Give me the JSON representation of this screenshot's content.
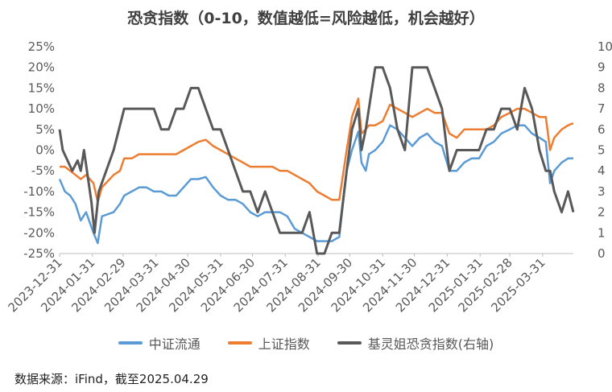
{
  "chart_data": {
    "type": "line",
    "title": "恐贪指数（0-10，数值越低=风险越低，机会越好）",
    "left_axis": {
      "ticks": [
        "25%",
        "20%",
        "15%",
        "10%",
        "5%",
        "0%",
        "-5%",
        "-10%",
        "-15%",
        "-20%",
        "-25%"
      ],
      "ylim": [
        -25,
        25
      ]
    },
    "right_axis": {
      "ticks": [
        "10",
        "9",
        "8",
        "7",
        "6",
        "5",
        "4",
        "3",
        "2",
        "1",
        "0"
      ],
      "ylim": [
        0,
        10
      ]
    },
    "x_axis": {
      "xlim": [
        "2023-12-31",
        "2025-04-29"
      ],
      "tick_labels": [
        "2023-12-31",
        "2024-01-31",
        "2024-02-29",
        "2024-03-31",
        "2024-04-30",
        "2024-05-31",
        "2024-06-30",
        "2024-07-31",
        "2024-08-31",
        "2024-09-30",
        "2024-10-31",
        "2024-11-30",
        "2024-12-31",
        "2025-01-31",
        "2025-02-28",
        "2025-03-31"
      ]
    },
    "grid": false,
    "legend_position": "bottom",
    "series": [
      {
        "name": "中证流通",
        "axis": "left",
        "color": "#5B9BD5",
        "points": [
          [
            "2023-12-31",
            -7
          ],
          [
            "2024-01-05",
            -10
          ],
          [
            "2024-01-10",
            -11
          ],
          [
            "2024-01-15",
            -13
          ],
          [
            "2024-01-20",
            -17
          ],
          [
            "2024-01-25",
            -15
          ],
          [
            "2024-02-01",
            -20
          ],
          [
            "2024-02-05",
            -22.5
          ],
          [
            "2024-02-09",
            -16
          ],
          [
            "2024-02-20",
            -15
          ],
          [
            "2024-02-26",
            -13
          ],
          [
            "2024-03-01",
            -11
          ],
          [
            "2024-03-08",
            -10
          ],
          [
            "2024-03-15",
            -9
          ],
          [
            "2024-03-22",
            -9
          ],
          [
            "2024-03-29",
            -10
          ],
          [
            "2024-04-05",
            -10
          ],
          [
            "2024-04-12",
            -11
          ],
          [
            "2024-04-19",
            -11
          ],
          [
            "2024-04-26",
            -9
          ],
          [
            "2024-05-03",
            -7
          ],
          [
            "2024-05-10",
            -7
          ],
          [
            "2024-05-17",
            -6.5
          ],
          [
            "2024-05-24",
            -9
          ],
          [
            "2024-05-31",
            -11
          ],
          [
            "2024-06-07",
            -12
          ],
          [
            "2024-06-14",
            -12
          ],
          [
            "2024-06-21",
            -13
          ],
          [
            "2024-06-28",
            -15
          ],
          [
            "2024-07-05",
            -16
          ],
          [
            "2024-07-12",
            -15
          ],
          [
            "2024-07-19",
            -15
          ],
          [
            "2024-07-26",
            -15
          ],
          [
            "2024-08-02",
            -16
          ],
          [
            "2024-08-09",
            -19
          ],
          [
            "2024-08-16",
            -20
          ],
          [
            "2024-08-23",
            -21
          ],
          [
            "2024-08-30",
            -22
          ],
          [
            "2024-09-06",
            -22
          ],
          [
            "2024-09-13",
            -22
          ],
          [
            "2024-09-20",
            -21
          ],
          [
            "2024-09-27",
            -5
          ],
          [
            "2024-10-02",
            0
          ],
          [
            "2024-10-08",
            4.5
          ],
          [
            "2024-10-11",
            -3
          ],
          [
            "2024-10-15",
            -5
          ],
          [
            "2024-10-18",
            -1
          ],
          [
            "2024-10-24",
            0
          ],
          [
            "2024-10-31",
            2
          ],
          [
            "2024-11-07",
            6
          ],
          [
            "2024-11-14",
            5
          ],
          [
            "2024-11-21",
            3
          ],
          [
            "2024-11-28",
            1
          ],
          [
            "2024-12-05",
            3
          ],
          [
            "2024-12-12",
            4
          ],
          [
            "2024-12-19",
            2
          ],
          [
            "2024-12-26",
            1
          ],
          [
            "2025-01-02",
            -5
          ],
          [
            "2025-01-09",
            -5
          ],
          [
            "2025-01-16",
            -3
          ],
          [
            "2025-01-23",
            -2
          ],
          [
            "2025-01-30",
            -2
          ],
          [
            "2025-02-06",
            1
          ],
          [
            "2025-02-13",
            2
          ],
          [
            "2025-02-20",
            4
          ],
          [
            "2025-02-28",
            5
          ],
          [
            "2025-03-07",
            6
          ],
          [
            "2025-03-14",
            6
          ],
          [
            "2025-03-21",
            4
          ],
          [
            "2025-03-28",
            3
          ],
          [
            "2025-04-03",
            2
          ],
          [
            "2025-04-07",
            -8
          ],
          [
            "2025-04-11",
            -5
          ],
          [
            "2025-04-18",
            -3
          ],
          [
            "2025-04-24",
            -2
          ],
          [
            "2025-04-29",
            -2
          ]
        ]
      },
      {
        "name": "上证指数",
        "axis": "left",
        "color": "#ED7D31",
        "points": [
          [
            "2023-12-31",
            -4
          ],
          [
            "2024-01-05",
            -4
          ],
          [
            "2024-01-10",
            -5
          ],
          [
            "2024-01-15",
            -6
          ],
          [
            "2024-01-20",
            -7
          ],
          [
            "2024-01-25",
            -6
          ],
          [
            "2024-02-01",
            -8
          ],
          [
            "2024-02-05",
            -12.5
          ],
          [
            "2024-02-09",
            -9
          ],
          [
            "2024-02-20",
            -6
          ],
          [
            "2024-02-26",
            -5
          ],
          [
            "2024-03-01",
            -2
          ],
          [
            "2024-03-08",
            -2
          ],
          [
            "2024-03-15",
            -1
          ],
          [
            "2024-03-22",
            -1
          ],
          [
            "2024-03-29",
            -1
          ],
          [
            "2024-04-05",
            -1
          ],
          [
            "2024-04-12",
            -1
          ],
          [
            "2024-04-19",
            -1
          ],
          [
            "2024-04-26",
            0
          ],
          [
            "2024-05-03",
            1
          ],
          [
            "2024-05-10",
            2
          ],
          [
            "2024-05-17",
            2.5
          ],
          [
            "2024-05-24",
            1
          ],
          [
            "2024-05-31",
            0
          ],
          [
            "2024-06-07",
            -1
          ],
          [
            "2024-06-14",
            -2
          ],
          [
            "2024-06-21",
            -3
          ],
          [
            "2024-06-28",
            -4
          ],
          [
            "2024-07-05",
            -4
          ],
          [
            "2024-07-12",
            -4
          ],
          [
            "2024-07-19",
            -4
          ],
          [
            "2024-07-26",
            -5
          ],
          [
            "2024-08-02",
            -5
          ],
          [
            "2024-08-09",
            -6
          ],
          [
            "2024-08-16",
            -7
          ],
          [
            "2024-08-23",
            -8
          ],
          [
            "2024-08-30",
            -10
          ],
          [
            "2024-09-06",
            -11
          ],
          [
            "2024-09-13",
            -12
          ],
          [
            "2024-09-20",
            -12
          ],
          [
            "2024-09-27",
            0
          ],
          [
            "2024-10-02",
            8
          ],
          [
            "2024-10-08",
            12.5
          ],
          [
            "2024-10-11",
            4
          ],
          [
            "2024-10-15",
            5
          ],
          [
            "2024-10-18",
            6
          ],
          [
            "2024-10-24",
            6
          ],
          [
            "2024-10-31",
            7
          ],
          [
            "2024-11-07",
            11
          ],
          [
            "2024-11-14",
            10
          ],
          [
            "2024-11-21",
            9
          ],
          [
            "2024-11-28",
            8
          ],
          [
            "2024-12-05",
            9
          ],
          [
            "2024-12-12",
            10
          ],
          [
            "2024-12-19",
            9
          ],
          [
            "2024-12-26",
            9
          ],
          [
            "2025-01-02",
            4
          ],
          [
            "2025-01-09",
            3
          ],
          [
            "2025-01-16",
            5
          ],
          [
            "2025-01-23",
            5
          ],
          [
            "2025-01-30",
            5
          ],
          [
            "2025-02-06",
            5
          ],
          [
            "2025-02-13",
            6
          ],
          [
            "2025-02-20",
            8
          ],
          [
            "2025-02-28",
            9
          ],
          [
            "2025-03-07",
            10
          ],
          [
            "2025-03-14",
            10
          ],
          [
            "2025-03-21",
            9
          ],
          [
            "2025-03-28",
            8
          ],
          [
            "2025-04-03",
            8
          ],
          [
            "2025-04-07",
            0
          ],
          [
            "2025-04-11",
            3
          ],
          [
            "2025-04-18",
            5
          ],
          [
            "2025-04-24",
            6
          ],
          [
            "2025-04-29",
            6.5
          ]
        ]
      },
      {
        "name": "基灵姐恐贪指数(右轴)",
        "axis": "right",
        "color": "#595959",
        "points": [
          [
            "2023-12-31",
            6
          ],
          [
            "2024-01-03",
            5
          ],
          [
            "2024-01-12",
            4
          ],
          [
            "2024-01-17",
            4.5
          ],
          [
            "2024-01-20",
            4
          ],
          [
            "2024-01-23",
            5
          ],
          [
            "2024-01-30",
            2.5
          ],
          [
            "2024-02-02",
            1
          ],
          [
            "2024-02-06",
            3
          ],
          [
            "2024-02-13",
            4
          ],
          [
            "2024-02-20",
            5
          ],
          [
            "2024-02-25",
            6
          ],
          [
            "2024-03-01",
            7
          ],
          [
            "2024-03-08",
            7
          ],
          [
            "2024-03-15",
            7
          ],
          [
            "2024-03-22",
            7
          ],
          [
            "2024-03-29",
            7
          ],
          [
            "2024-04-05",
            6
          ],
          [
            "2024-04-12",
            6
          ],
          [
            "2024-04-19",
            7
          ],
          [
            "2024-04-26",
            7
          ],
          [
            "2024-05-03",
            8
          ],
          [
            "2024-05-10",
            8
          ],
          [
            "2024-05-17",
            7
          ],
          [
            "2024-05-24",
            6
          ],
          [
            "2024-05-31",
            6
          ],
          [
            "2024-06-07",
            5
          ],
          [
            "2024-06-14",
            4
          ],
          [
            "2024-06-21",
            3
          ],
          [
            "2024-06-28",
            3
          ],
          [
            "2024-07-05",
            2
          ],
          [
            "2024-07-12",
            3
          ],
          [
            "2024-07-19",
            2
          ],
          [
            "2024-07-26",
            1
          ],
          [
            "2024-08-02",
            1
          ],
          [
            "2024-08-09",
            1
          ],
          [
            "2024-08-16",
            1
          ],
          [
            "2024-08-23",
            2
          ],
          [
            "2024-08-30",
            0
          ],
          [
            "2024-09-06",
            0
          ],
          [
            "2024-09-13",
            1
          ],
          [
            "2024-09-20",
            1
          ],
          [
            "2024-09-27",
            4
          ],
          [
            "2024-10-02",
            6
          ],
          [
            "2024-10-08",
            7
          ],
          [
            "2024-10-11",
            5
          ],
          [
            "2024-10-15",
            6
          ],
          [
            "2024-10-18",
            7
          ],
          [
            "2024-10-24",
            9
          ],
          [
            "2024-10-31",
            9
          ],
          [
            "2024-11-07",
            8
          ],
          [
            "2024-11-14",
            6
          ],
          [
            "2024-11-21",
            5
          ],
          [
            "2024-11-28",
            9
          ],
          [
            "2024-12-05",
            9
          ],
          [
            "2024-12-12",
            9
          ],
          [
            "2024-12-19",
            8
          ],
          [
            "2024-12-26",
            7
          ],
          [
            "2025-01-02",
            4
          ],
          [
            "2025-01-09",
            5
          ],
          [
            "2025-01-16",
            5
          ],
          [
            "2025-01-23",
            5
          ],
          [
            "2025-01-30",
            5
          ],
          [
            "2025-02-06",
            6
          ],
          [
            "2025-02-13",
            6
          ],
          [
            "2025-02-20",
            7
          ],
          [
            "2025-02-28",
            7
          ],
          [
            "2025-03-07",
            6
          ],
          [
            "2025-03-14",
            8
          ],
          [
            "2025-03-21",
            7
          ],
          [
            "2025-03-28",
            5
          ],
          [
            "2025-04-03",
            4
          ],
          [
            "2025-04-07",
            4
          ],
          [
            "2025-04-11",
            3
          ],
          [
            "2025-04-18",
            2
          ],
          [
            "2025-04-24",
            3
          ],
          [
            "2025-04-29",
            2
          ]
        ]
      }
    ]
  },
  "source_note": "数据来源：iFind，截至2025.04.29"
}
